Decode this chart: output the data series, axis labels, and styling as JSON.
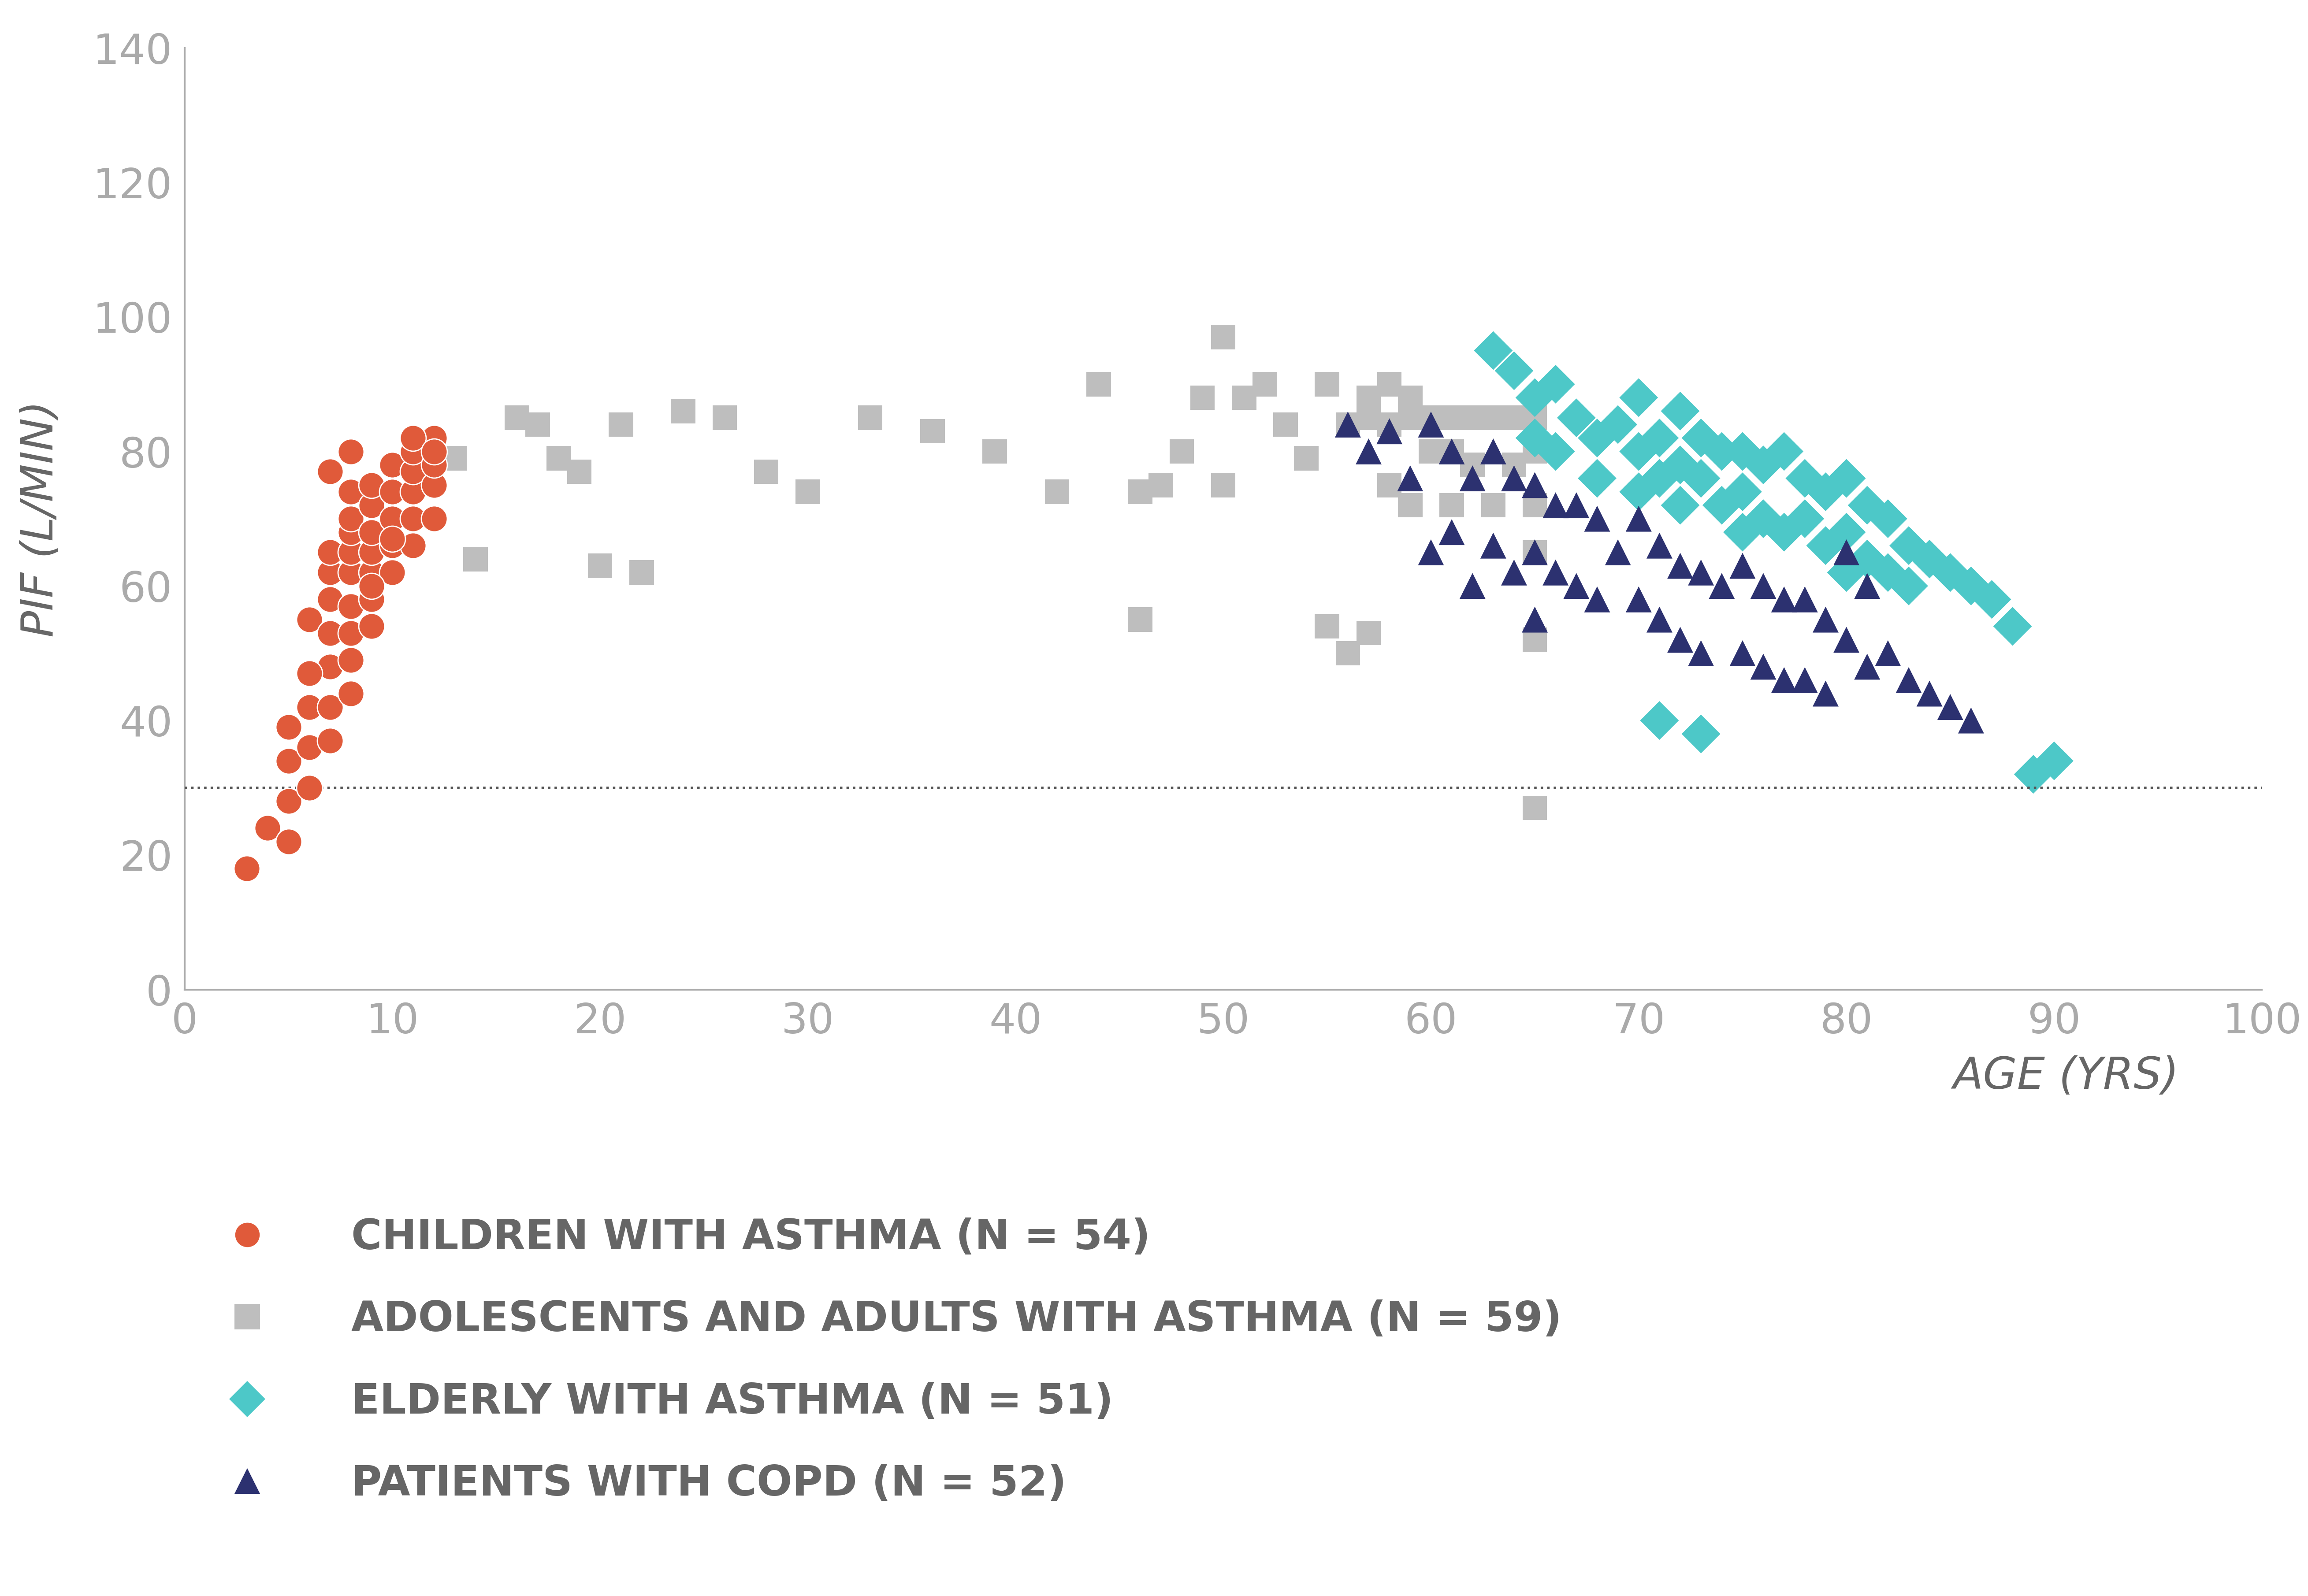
{
  "children_asthma": {
    "x": [
      3,
      4,
      5,
      5,
      5,
      6,
      6,
      6,
      6,
      7,
      7,
      7,
      7,
      7,
      7,
      7,
      8,
      8,
      8,
      8,
      8,
      8,
      8,
      8,
      8,
      9,
      9,
      9,
      9,
      9,
      9,
      9,
      10,
      10,
      10,
      10,
      10,
      11,
      11,
      11,
      11,
      11,
      12,
      12,
      12,
      12,
      5,
      6,
      7,
      8,
      9,
      10,
      11,
      12
    ],
    "y": [
      18,
      24,
      22,
      28,
      34,
      30,
      36,
      42,
      55,
      37,
      42,
      48,
      53,
      58,
      62,
      65,
      44,
      49,
      53,
      57,
      62,
      65,
      68,
      70,
      74,
      54,
      58,
      62,
      65,
      68,
      72,
      75,
      62,
      66,
      70,
      74,
      78,
      66,
      70,
      74,
      77,
      80,
      70,
      75,
      78,
      82,
      39,
      47,
      77,
      80,
      60,
      67,
      82,
      80
    ],
    "color": "#E05A3A",
    "marker": "o",
    "label": "CHILDREN WITH ASTHMA (N = 54)"
  },
  "adolescents_asthma": {
    "x": [
      13,
      14,
      16,
      17,
      18,
      19,
      20,
      21,
      22,
      24,
      26,
      28,
      30,
      33,
      36,
      39,
      42,
      44,
      46,
      47,
      48,
      49,
      50,
      50,
      51,
      52,
      53,
      54,
      55,
      56,
      57,
      57,
      58,
      58,
      59,
      59,
      60,
      60,
      61,
      61,
      61,
      62,
      62,
      63,
      63,
      64,
      64,
      65,
      65,
      65,
      65,
      65,
      65,
      46,
      55,
      56,
      57,
      58,
      59
    ],
    "y": [
      79,
      64,
      85,
      84,
      79,
      77,
      63,
      84,
      62,
      86,
      85,
      77,
      74,
      85,
      83,
      80,
      74,
      90,
      74,
      75,
      80,
      88,
      97,
      75,
      88,
      90,
      84,
      79,
      90,
      84,
      88,
      85,
      90,
      84,
      88,
      85,
      85,
      80,
      85,
      80,
      72,
      85,
      78,
      85,
      72,
      85,
      78,
      85,
      80,
      72,
      65,
      52,
      27,
      55,
      54,
      50,
      53,
      75,
      72
    ],
    "color": "#BEBEBE",
    "marker": "s",
    "label": "ADOLESCENTS AND ADULTS WITH ASTHMA (N = 59)"
  },
  "elderly_asthma": {
    "x": [
      63,
      64,
      65,
      65,
      66,
      66,
      67,
      68,
      68,
      69,
      70,
      70,
      70,
      71,
      71,
      72,
      72,
      72,
      73,
      73,
      74,
      74,
      75,
      75,
      75,
      76,
      76,
      77,
      77,
      78,
      78,
      79,
      79,
      80,
      80,
      80,
      81,
      81,
      82,
      82,
      83,
      83,
      84,
      85,
      86,
      87,
      88,
      89,
      90,
      71,
      73
    ],
    "y": [
      95,
      92,
      88,
      82,
      90,
      80,
      85,
      82,
      76,
      84,
      88,
      80,
      74,
      82,
      76,
      86,
      78,
      72,
      82,
      76,
      80,
      72,
      80,
      74,
      68,
      78,
      70,
      80,
      68,
      76,
      70,
      74,
      66,
      76,
      68,
      62,
      72,
      64,
      70,
      62,
      66,
      60,
      64,
      62,
      60,
      58,
      54,
      32,
      34,
      40,
      38
    ],
    "color": "#4DC8C8",
    "marker": "D",
    "label": "ELDERLY WITH ASTHMA (N = 51)"
  },
  "copd": {
    "x": [
      56,
      57,
      58,
      59,
      60,
      60,
      61,
      61,
      62,
      62,
      63,
      63,
      64,
      64,
      65,
      65,
      65,
      66,
      66,
      67,
      67,
      68,
      68,
      69,
      70,
      70,
      71,
      71,
      72,
      72,
      73,
      73,
      74,
      75,
      75,
      76,
      76,
      77,
      77,
      78,
      78,
      79,
      79,
      80,
      80,
      81,
      81,
      82,
      83,
      84,
      85,
      86
    ],
    "y": [
      84,
      80,
      83,
      76,
      84,
      65,
      80,
      68,
      76,
      60,
      80,
      66,
      76,
      62,
      75,
      65,
      55,
      72,
      62,
      72,
      60,
      70,
      58,
      65,
      70,
      58,
      66,
      55,
      63,
      52,
      62,
      50,
      60,
      63,
      50,
      60,
      48,
      58,
      46,
      58,
      46,
      55,
      44,
      65,
      52,
      60,
      48,
      50,
      46,
      44,
      42,
      40
    ],
    "color": "#2C3170",
    "marker": "^",
    "label": "PATIENTS WITH COPD (N = 52)"
  },
  "dotted_line_y": 30,
  "xlim": [
    0,
    100
  ],
  "ylim": [
    0,
    140
  ],
  "xticks": [
    0,
    10,
    20,
    30,
    40,
    50,
    60,
    70,
    80,
    90,
    100
  ],
  "yticks": [
    0,
    20,
    40,
    60,
    80,
    100,
    120,
    140
  ],
  "xlabel": "AGE (YRS)",
  "ylabel": "PIF (L/MIN)",
  "axis_color": "#AAAAAA",
  "text_color": "#666666",
  "background_color": "#FFFFFF",
  "marker_size_circle": 1800,
  "marker_size_square": 1600,
  "marker_size_diamond": 2000,
  "marker_size_triangle": 1800,
  "legend_marker_size": 42,
  "legend_fontsize": 68,
  "axis_label_fontsize": 72,
  "tick_fontsize": 68
}
